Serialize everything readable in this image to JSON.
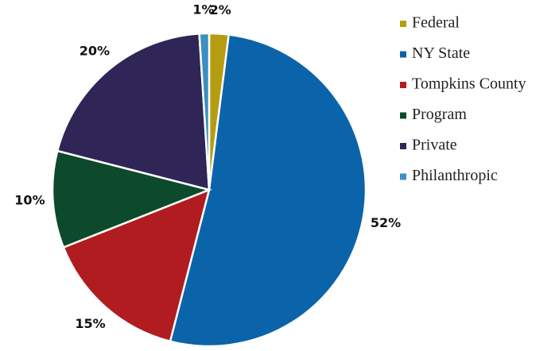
{
  "chart_data": {
    "type": "pie",
    "categories": [
      "Federal",
      "NY State",
      "Tompkins County",
      "Program",
      "Private",
      "Philanthropic"
    ],
    "values": [
      2,
      52,
      15,
      10,
      20,
      1
    ],
    "value_labels": [
      "2%",
      "52%",
      "15%",
      "10%",
      "20%",
      "1%"
    ],
    "colors": [
      "#b59d12",
      "#0b64a9",
      "#b01c20",
      "#0c4a2b",
      "#2f2557",
      "#3b8fc1"
    ],
    "legend": "right"
  }
}
